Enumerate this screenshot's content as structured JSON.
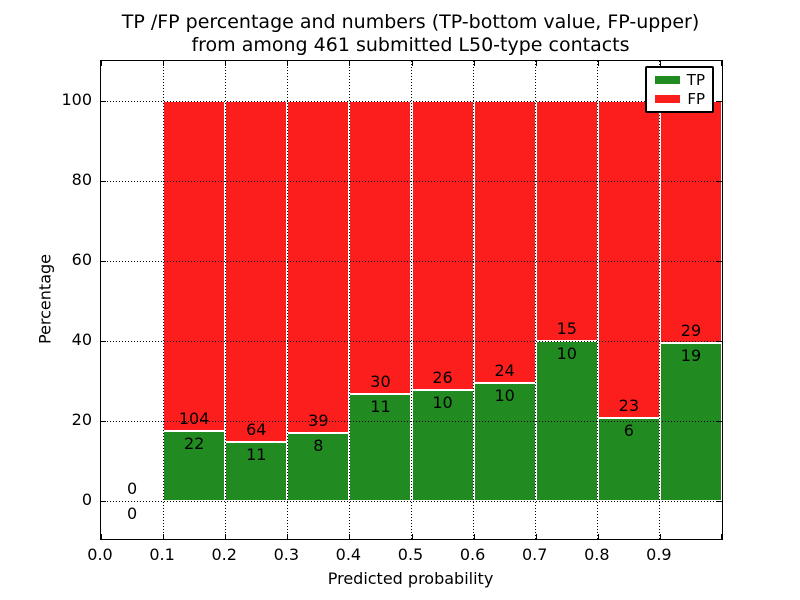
{
  "chart_data": {
    "type": "bar",
    "stacked": true,
    "title_line1": "TP /FP percentage and numbers (TP-bottom value, FP-upper)",
    "title_line2": "from among 461 submitted L50-type contacts",
    "xlabel": "Predicted probability",
    "ylabel": "Percentage",
    "total_contacts": 461,
    "bin_edges": [
      0.0,
      0.1,
      0.2,
      0.3,
      0.4,
      0.5,
      0.6,
      0.7,
      0.8,
      0.9,
      1.0
    ],
    "series": [
      {
        "name": "TP",
        "color": "#218a21",
        "counts": [
          0,
          22,
          11,
          8,
          11,
          10,
          10,
          10,
          6,
          19
        ]
      },
      {
        "name": "FP",
        "color": "#fc1d1d",
        "counts": [
          0,
          104,
          64,
          39,
          30,
          26,
          24,
          15,
          23,
          29
        ]
      }
    ],
    "xtick_labels": [
      "0.0",
      "0.1",
      "0.2",
      "0.3",
      "0.4",
      "0.5",
      "0.6",
      "0.7",
      "0.8",
      "0.9"
    ],
    "ytick_values": [
      0,
      20,
      40,
      60,
      80,
      100
    ],
    "ytick_labels": [
      "0",
      "20",
      "40",
      "60",
      "80",
      "100"
    ],
    "ylim_display": [
      0,
      100
    ],
    "grid": "dotted",
    "legend_position": "upper right"
  }
}
